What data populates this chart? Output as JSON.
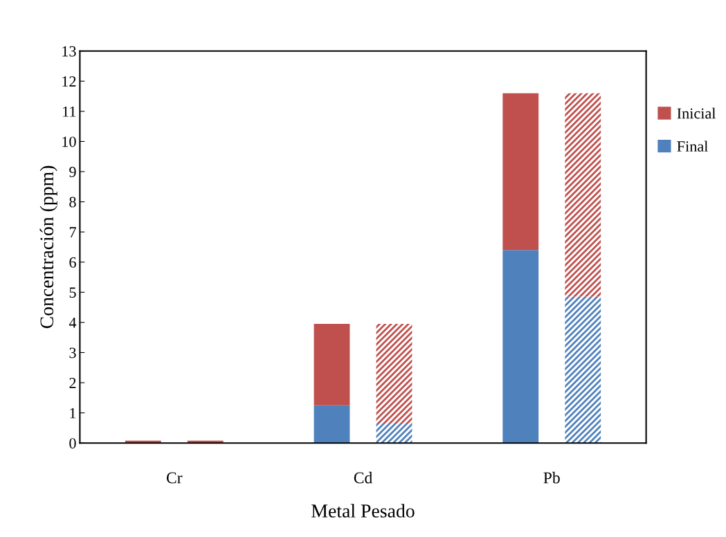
{
  "chart_data": {
    "type": "bar",
    "stacked": true,
    "xlabel": "Metal Pesado",
    "ylabel": "Concentración (ppm)",
    "categories": [
      null,
      null,
      null,
      null,
      null,
      null
    ],
    "annotations": [
      "Cr",
      "Cd",
      "Pb"
    ],
    "series": [
      {
        "name": "Final",
        "color": "#4f81bd",
        "values": [
          0,
          0,
          1.25,
          0.65,
          6.4,
          4.85
        ]
      },
      {
        "name": "Inicial",
        "color": "#c0504d",
        "values": [
          0.08,
          0.08,
          2.7,
          3.3,
          5.2,
          6.75
        ]
      }
    ],
    "ylim": [
      0,
      13
    ],
    "yticks": [
      0,
      1,
      2,
      3,
      4,
      5,
      6,
      7,
      8,
      9,
      10,
      11,
      12,
      13
    ],
    "grid": false,
    "legend": "right"
  }
}
